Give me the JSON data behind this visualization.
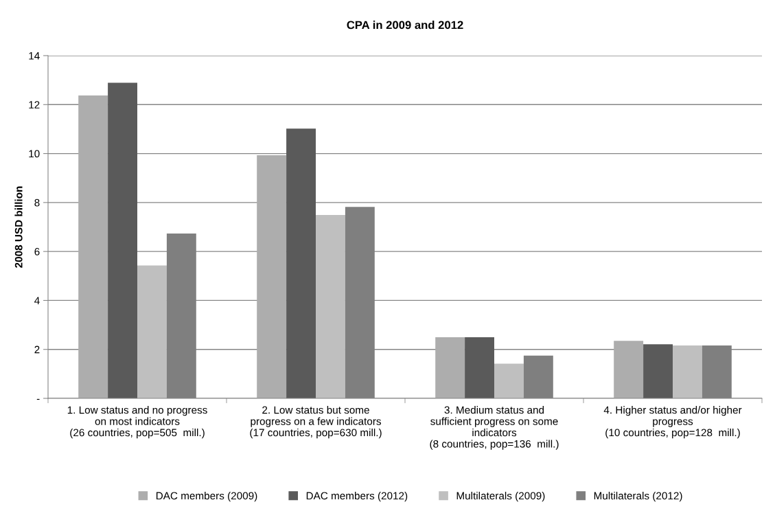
{
  "chart_data": {
    "type": "bar",
    "title": "CPA in 2009 and 2012",
    "ylabel": "2008 USD billion",
    "categories": [
      "1. Low status and no progress\non most indicators\n(26 countries, pop=505  mill.)",
      "2. Low status but some\nprogress on a few indicators\n(17 countries, pop=630 mill.)",
      "3. Medium status and\nsufficient progress on some\nindicators\n(8 countries, pop=136  mill.)",
      "4. Higher status and/or higher\nprogress\n(10 countries, pop=128  mill.)"
    ],
    "series": [
      {
        "name": "DAC members (2009)",
        "color": "#adadad",
        "values": [
          12.37,
          9.93,
          2.5,
          2.35
        ]
      },
      {
        "name": "DAC members (2012)",
        "color": "#5a5a5a",
        "values": [
          12.89,
          11.02,
          2.5,
          2.21
        ]
      },
      {
        "name": "Multilaterals (2009)",
        "color": "#bfbfbf",
        "values": [
          5.43,
          7.49,
          1.42,
          2.16
        ]
      },
      {
        "name": "Multilaterals (2012)",
        "color": "#7f7f7f",
        "values": [
          6.73,
          7.82,
          1.75,
          2.16
        ]
      }
    ],
    "ylim": [
      0,
      14
    ],
    "yticks": [
      {
        "value": 0,
        "label": "-"
      },
      2,
      4,
      6,
      8,
      10,
      12,
      14
    ],
    "grid": "y",
    "legend": "bottom"
  }
}
